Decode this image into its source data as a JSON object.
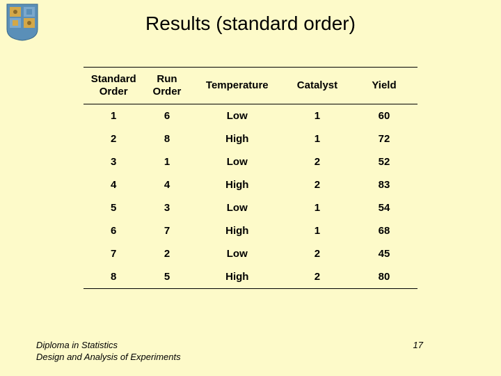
{
  "title": "Results (standard order)",
  "logo": {
    "bg_color": "#5a8fb8",
    "accent_color": "#d4a848",
    "border_color": "#3a6a8a"
  },
  "table": {
    "columns": [
      {
        "label": "Standard\nOrder",
        "class": "col-std"
      },
      {
        "label": "Run\nOrder",
        "class": "col-run"
      },
      {
        "label": "Temperature",
        "class": "col-temp"
      },
      {
        "label": "Catalyst",
        "class": "col-cat"
      },
      {
        "label": "Yield",
        "class": "col-yield"
      }
    ],
    "rows": [
      [
        "1",
        "6",
        "Low",
        "1",
        "60"
      ],
      [
        "2",
        "8",
        "High",
        "1",
        "72"
      ],
      [
        "3",
        "1",
        "Low",
        "2",
        "52"
      ],
      [
        "4",
        "4",
        "High",
        "2",
        "83"
      ],
      [
        "5",
        "3",
        "Low",
        "1",
        "54"
      ],
      [
        "6",
        "7",
        "High",
        "1",
        "68"
      ],
      [
        "7",
        "2",
        "Low",
        "2",
        "45"
      ],
      [
        "8",
        "5",
        "High",
        "2",
        "80"
      ]
    ]
  },
  "footer": {
    "line1": "Diploma in Statistics",
    "line2": "Design and Analysis of Experiments",
    "page": "17"
  },
  "colors": {
    "background": "#fdfac9",
    "text": "#000000",
    "border": "#000000"
  }
}
